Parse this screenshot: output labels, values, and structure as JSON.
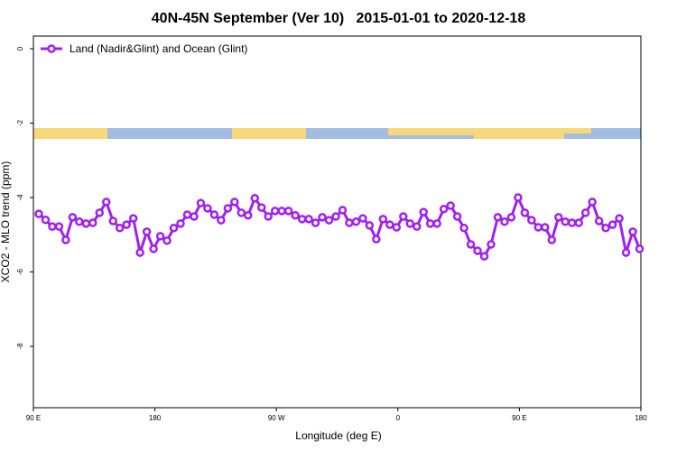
{
  "chart_data": {
    "type": "line",
    "title": "40N-45N September (Ver 10)   2015-01-01 to 2020-12-18",
    "xlabel": "Longitude (deg E)",
    "ylabel": "XCO2 - MLO trend (ppm)",
    "legend": "top-left",
    "xlim": [
      90,
      540
    ],
    "ylim": [
      -9.65,
      0.34
    ],
    "xticks": [
      {
        "value": 90,
        "label": "90 E"
      },
      {
        "value": 180,
        "label": "180"
      },
      {
        "value": 270,
        "label": "90 W"
      },
      {
        "value": 360,
        "label": "0"
      },
      {
        "value": 450,
        "label": "90 E"
      },
      {
        "value": 540,
        "label": "180"
      }
    ],
    "yticks": [
      0,
      -2,
      -4,
      -6,
      -8
    ],
    "x": [
      94,
      99,
      104,
      109,
      114,
      119,
      124,
      129,
      134,
      139,
      144,
      149,
      154,
      159,
      164,
      169,
      174,
      179,
      184,
      189,
      194,
      199,
      204,
      209,
      214,
      219,
      224,
      229,
      234,
      239,
      244,
      249,
      254,
      259,
      264,
      269,
      274,
      279,
      284,
      289,
      294,
      299,
      304,
      309,
      314,
      319,
      324,
      329,
      334,
      339,
      344,
      349,
      354,
      359,
      364,
      369,
      374,
      379,
      384,
      389,
      394,
      399,
      404,
      409,
      414,
      419,
      424,
      429,
      434,
      439,
      444,
      449,
      454,
      459,
      464,
      469,
      474,
      479,
      484,
      489,
      494,
      499,
      504,
      509,
      514,
      519,
      524,
      529,
      534,
      539
    ],
    "series": [
      {
        "name": "Land (Nadir&Glint) and Ocean (Glint)",
        "color": "#a020f0",
        "values": [
          -4.44,
          -4.6,
          -4.78,
          -4.78,
          -5.14,
          -4.53,
          -4.65,
          -4.7,
          -4.68,
          -4.41,
          -4.12,
          -4.63,
          -4.82,
          -4.73,
          -4.56,
          -5.48,
          -4.92,
          -5.38,
          -5.04,
          -5.16,
          -4.82,
          -4.7,
          -4.46,
          -4.51,
          -4.15,
          -4.29,
          -4.46,
          -4.61,
          -4.29,
          -4.12,
          -4.41,
          -4.48,
          -4.02,
          -4.27,
          -4.51,
          -4.36,
          -4.36,
          -4.36,
          -4.48,
          -4.58,
          -4.58,
          -4.68,
          -4.53,
          -4.61,
          -4.51,
          -4.34,
          -4.68,
          -4.65,
          -4.56,
          -4.75,
          -5.12,
          -4.58,
          -4.73,
          -4.8,
          -4.51,
          -4.7,
          -4.78,
          -4.39,
          -4.7,
          -4.7,
          -4.31,
          -4.22,
          -4.51,
          -4.82,
          -5.26,
          -5.43,
          -5.58,
          -5.26,
          -4.53,
          -4.65,
          -4.53,
          -4.0,
          -4.41,
          -4.61,
          -4.8,
          -4.8,
          -5.14,
          -4.53,
          -4.65,
          -4.68,
          -4.68,
          -4.41,
          -4.12,
          -4.63,
          -4.82,
          -4.73,
          -4.56,
          -5.48,
          -4.92,
          -5.38
        ]
      }
    ]
  }
}
